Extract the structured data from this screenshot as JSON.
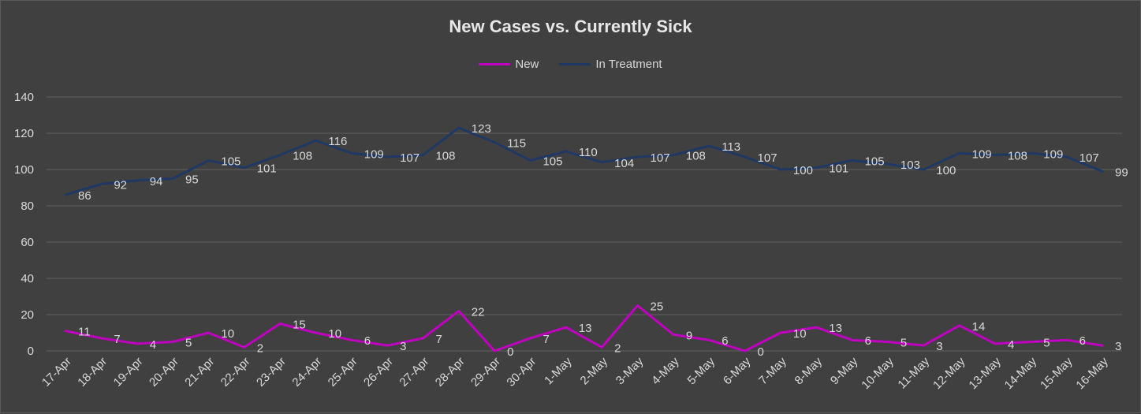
{
  "chart_data": {
    "type": "line",
    "title": "New Cases vs. Currently Sick",
    "xlabel": "",
    "ylabel": "",
    "ylim": [
      0,
      140
    ],
    "yticks": [
      0,
      20,
      40,
      60,
      80,
      100,
      120,
      140
    ],
    "grid": true,
    "legend_position": "top-center",
    "categories": [
      "17-Apr",
      "18-Apr",
      "19-Apr",
      "20-Apr",
      "21-Apr",
      "22-Apr",
      "23-Apr",
      "24-Apr",
      "25-Apr",
      "26-Apr",
      "27-Apr",
      "28-Apr",
      "29-Apr",
      "30-Apr",
      "1-May",
      "2-May",
      "3-May",
      "4-May",
      "5-May",
      "6-May",
      "7-May",
      "8-May",
      "9-May",
      "10-May",
      "11-May",
      "12-May",
      "13-May",
      "14-May",
      "15-May",
      "16-May"
    ],
    "series": [
      {
        "name": "New",
        "color": "#c000c0",
        "values": [
          11,
          7,
          4,
          5,
          10,
          2,
          15,
          10,
          6,
          3,
          7,
          22,
          0,
          7,
          13,
          2,
          25,
          9,
          6,
          0,
          10,
          13,
          6,
          5,
          3,
          14,
          4,
          5,
          6,
          3
        ]
      },
      {
        "name": "In Treatment",
        "color": "#203864",
        "values": [
          86,
          92,
          94,
          95,
          105,
          101,
          108,
          116,
          109,
          107,
          108,
          123,
          115,
          105,
          110,
          104,
          107,
          108,
          113,
          107,
          100,
          101,
          105,
          103,
          100,
          109,
          108,
          109,
          107,
          99
        ]
      }
    ]
  }
}
